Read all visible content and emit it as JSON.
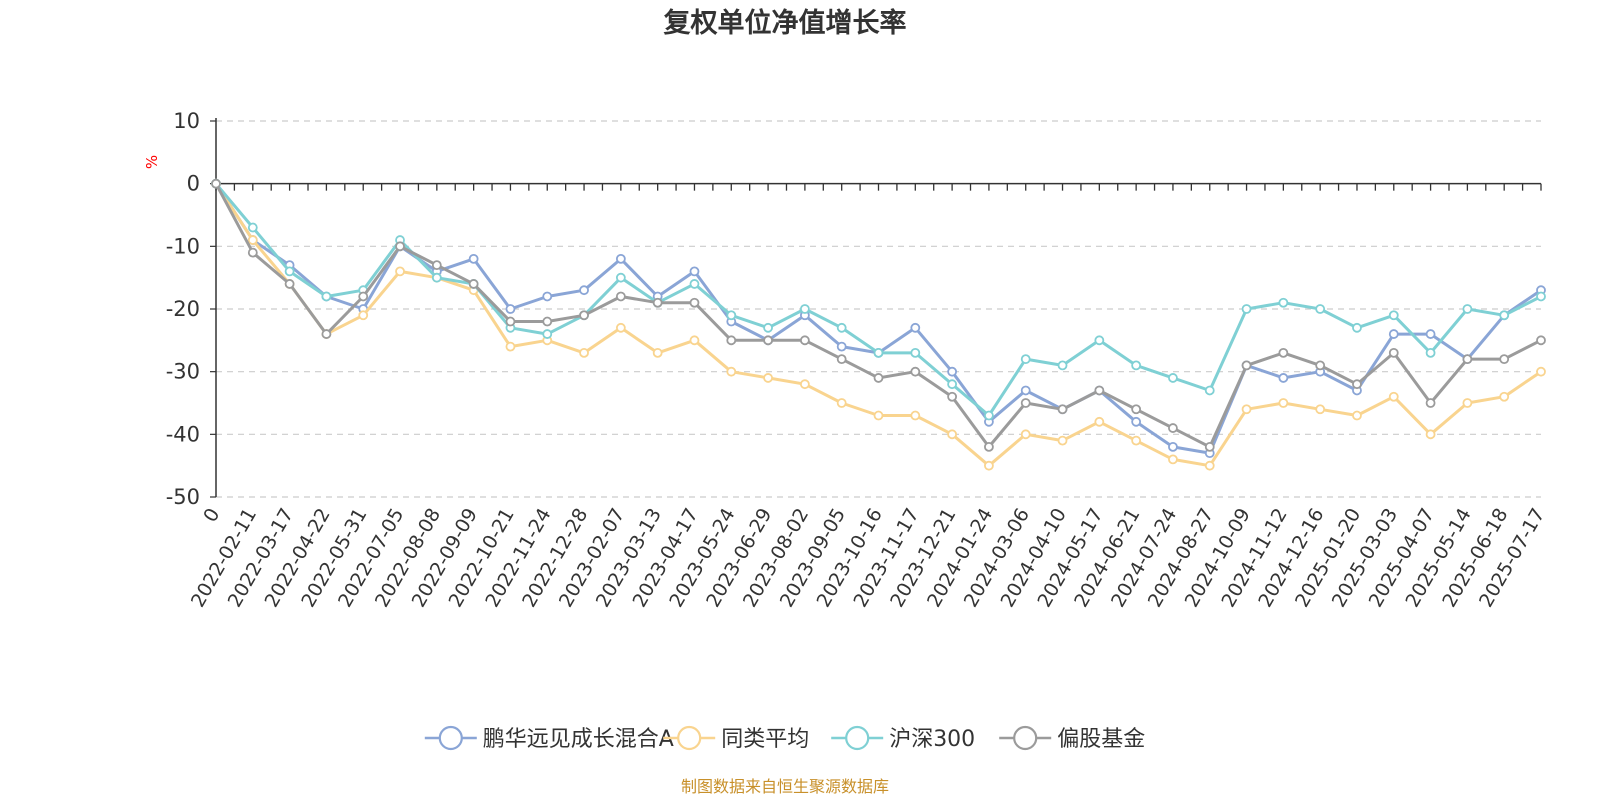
{
  "chart_data": {
    "type": "line",
    "title": "复权单位净值增长率",
    "ylabel": "%",
    "ylim": [
      -50,
      10
    ],
    "yticks": [
      10,
      0,
      -10,
      -20,
      -30,
      -40,
      -50
    ],
    "grid": true,
    "legend_position": "bottom",
    "source": "制图数据来自恒生聚源数据库",
    "x": [
      "0",
      "2022-02-11",
      "2022-03-17",
      "2022-04-22",
      "2022-05-31",
      "2022-07-05",
      "2022-08-08",
      "2022-09-09",
      "2022-10-21",
      "2022-11-24",
      "2022-12-28",
      "2023-02-07",
      "2023-03-13",
      "2023-04-17",
      "2023-05-24",
      "2023-06-29",
      "2023-08-02",
      "2023-09-05",
      "2023-10-16",
      "2023-11-17",
      "2023-12-21",
      "2024-01-24",
      "2024-03-06",
      "2024-04-10",
      "2024-05-17",
      "2024-06-21",
      "2024-07-24",
      "2024-08-27",
      "2024-10-09",
      "2024-11-12",
      "2024-12-16",
      "2025-01-20",
      "2025-03-03",
      "2025-04-07",
      "2025-05-14",
      "2025-06-18",
      "2025-07-17"
    ],
    "series": [
      {
        "name": "鹏华远见成长混合A",
        "color": "#8aa5d6",
        "values": [
          0,
          -9,
          -13,
          -18,
          -20,
          -10,
          -14,
          -12,
          -20,
          -18,
          -17,
          -12,
          -18,
          -14,
          -22,
          -25,
          -21,
          -26,
          -27,
          -23,
          -30,
          -38,
          -33,
          -36,
          -33,
          -38,
          -42,
          -43,
          -29,
          -31,
          -30,
          -33,
          -24,
          -24,
          -28,
          -21,
          -17
        ]
      },
      {
        "name": "同类平均",
        "color": "#f9d48f",
        "values": [
          0,
          -9,
          -16,
          -24,
          -21,
          -14,
          -15,
          -17,
          -26,
          -25,
          -27,
          -23,
          -27,
          -25,
          -30,
          -31,
          -32,
          -35,
          -37,
          -37,
          -40,
          -45,
          -40,
          -41,
          -38,
          -41,
          -44,
          -45,
          -36,
          -35,
          -36,
          -37,
          -34,
          -40,
          -35,
          -34,
          -30
        ]
      },
      {
        "name": "沪深300",
        "color": "#7fd0d4",
        "values": [
          0,
          -7,
          -14,
          -18,
          -17,
          -9,
          -15,
          -16,
          -23,
          -24,
          -21,
          -15,
          -19,
          -16,
          -21,
          -23,
          -20,
          -23,
          -27,
          -27,
          -32,
          -37,
          -28,
          -29,
          -25,
          -29,
          -31,
          -33,
          -20,
          -19,
          -20,
          -23,
          -21,
          -27,
          -20,
          -21,
          -18
        ]
      },
      {
        "name": "偏股基金",
        "color": "#9b9b9b",
        "values": [
          0,
          -11,
          -16,
          -24,
          -18,
          -10,
          -13,
          -16,
          -22,
          -22,
          -21,
          -18,
          -19,
          -19,
          -25,
          -25,
          -25,
          -28,
          -31,
          -30,
          -34,
          -42,
          -35,
          -36,
          -33,
          -36,
          -39,
          -42,
          -29,
          -27,
          -29,
          -32,
          -27,
          -35,
          -28,
          -28,
          -25
        ]
      }
    ]
  }
}
